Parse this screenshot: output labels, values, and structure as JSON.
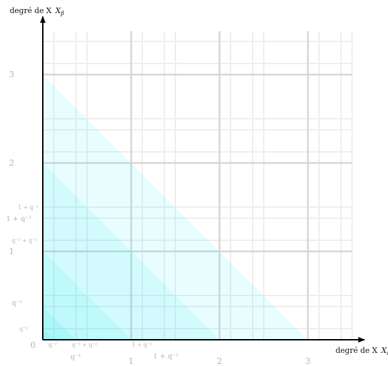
{
  "axes": {
    "x_label": "degré de X",
    "x_label_subscript": "α",
    "y_label": "degré de X",
    "y_label_subscript": "β",
    "origin_label": "0"
  },
  "x_ticks": {
    "main": [
      "1",
      "2",
      "3"
    ],
    "small": [
      "q⁻²",
      "q⁻¹ + q⁻²",
      "1 + q⁻²"
    ],
    "mid": [
      "q⁻¹",
      "1 + q⁻¹"
    ]
  },
  "y_ticks": {
    "main": [
      "1",
      "2",
      "3"
    ],
    "small": [
      "q⁻²",
      "q⁻¹ + q⁻²",
      "1 + q⁻²"
    ],
    "mid": [
      "q⁻¹",
      "1 + q⁻¹"
    ]
  },
  "colors": {
    "region_fill": "#00e5f0",
    "grid_major": "#d8d8d8",
    "grid_minor": "#ececec",
    "tick_text": "#b4b4b4",
    "axis": "#000000"
  }
}
